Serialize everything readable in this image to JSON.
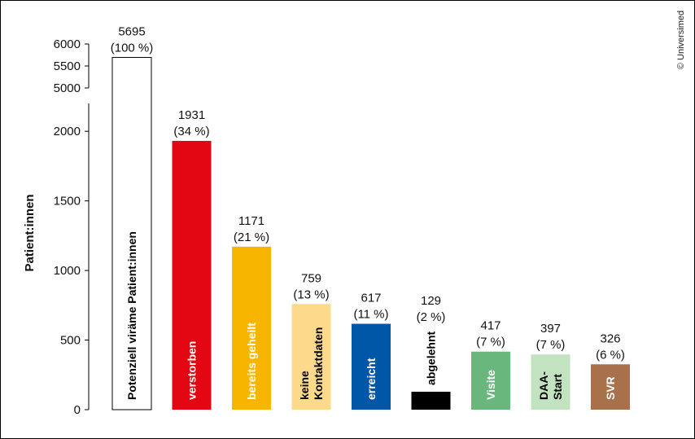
{
  "chart_data": {
    "type": "bar",
    "ylabel": "Patient:innen",
    "credit": "© Universimed",
    "axis_break": true,
    "lower_ylim": [
      0,
      2200
    ],
    "upper_ylim": [
      5000,
      6000
    ],
    "lower_ticks": [
      "0",
      "500",
      "1000",
      "1500",
      "2000"
    ],
    "upper_ticks": [
      "5000",
      "5500",
      "6000"
    ],
    "categories": [
      "Potenziell viräme Patient:innen",
      "verstorben",
      "bereits geheilt",
      "keine Kontaktdaten",
      "erreicht",
      "abgelehnt",
      "Visite",
      "DAA-Start",
      "SVR"
    ],
    "bars": [
      {
        "category": "Potenziell viräme Patient:innen",
        "label_lines": [
          "Potenziell viräme Patient:innen"
        ],
        "value": 5695,
        "value_label": "5695",
        "pct_label": "(100 %)",
        "color": "#ffffff",
        "stroke": "#000000",
        "text_color": "#000000",
        "label_inside": true
      },
      {
        "category": "verstorben",
        "label_lines": [
          "verstorben"
        ],
        "value": 1931,
        "value_label": "1931",
        "pct_label": "(34 %)",
        "color": "#e30613",
        "text_color": "#ffffff",
        "label_inside": true
      },
      {
        "category": "bereits geheilt",
        "label_lines": [
          "bereits geheilt"
        ],
        "value": 1171,
        "value_label": "1171",
        "pct_label": "(21 %)",
        "color": "#f7b500",
        "text_color": "#ffffff",
        "label_inside": true
      },
      {
        "category": "keine Kontaktdaten",
        "label_lines": [
          "keine",
          "Kontaktdaten"
        ],
        "value": 759,
        "value_label": "759",
        "pct_label": "(13 %)",
        "color": "#fdd98b",
        "text_color": "#000000",
        "label_inside": true
      },
      {
        "category": "erreicht",
        "label_lines": [
          "erreicht"
        ],
        "value": 617,
        "value_label": "617",
        "pct_label": "(11 %)",
        "color": "#0057a8",
        "text_color": "#ffffff",
        "label_inside": true
      },
      {
        "category": "abgelehnt",
        "label_lines": [
          "abgelehnt"
        ],
        "value": 129,
        "value_label": "129",
        "pct_label": "(2 %)",
        "color": "#000000",
        "text_color": "#000000",
        "label_inside": false
      },
      {
        "category": "Visite",
        "label_lines": [
          "Visite"
        ],
        "value": 417,
        "value_label": "417",
        "pct_label": "(7 %)",
        "color": "#6ab77e",
        "text_color": "#ffffff",
        "label_inside": true
      },
      {
        "category": "DAA-Start",
        "label_lines": [
          "DAA-",
          "Start"
        ],
        "value": 397,
        "value_label": "397",
        "pct_label": "(7 %)",
        "color": "#c3e2c0",
        "text_color": "#000000",
        "label_inside": true
      },
      {
        "category": "SVR",
        "label_lines": [
          "SVR"
        ],
        "value": 326,
        "value_label": "326",
        "pct_label": "(6 %)",
        "color": "#a9714b",
        "text_color": "#ffffff",
        "label_inside": true
      }
    ]
  }
}
